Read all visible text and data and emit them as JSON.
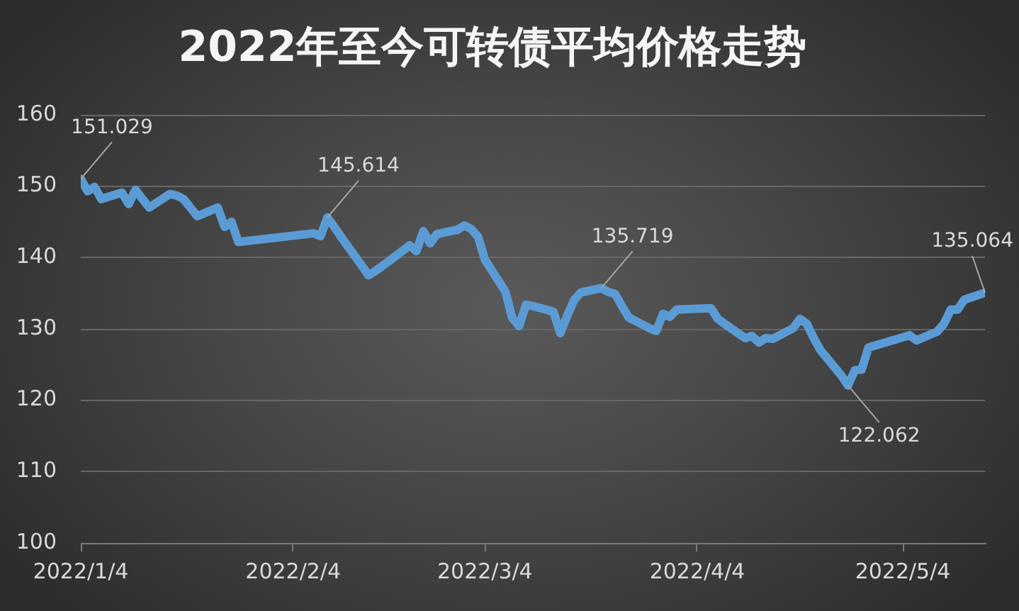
{
  "chart_data": {
    "type": "line",
    "title": "2022年至今可转债平均价格走势",
    "x": [
      "2022-01-04",
      "2022-01-05",
      "2022-01-06",
      "2022-01-07",
      "2022-01-10",
      "2022-01-11",
      "2022-01-12",
      "2022-01-13",
      "2022-01-14",
      "2022-01-17",
      "2022-01-18",
      "2022-01-19",
      "2022-01-20",
      "2022-01-21",
      "2022-01-24",
      "2022-01-25",
      "2022-01-26",
      "2022-01-27",
      "2022-01-28",
      "2022-02-07",
      "2022-02-08",
      "2022-02-09",
      "2022-02-10",
      "2022-02-11",
      "2022-02-14",
      "2022-02-15",
      "2022-02-16",
      "2022-02-17",
      "2022-02-18",
      "2022-02-21",
      "2022-02-22",
      "2022-02-23",
      "2022-02-24",
      "2022-02-25",
      "2022-02-28",
      "2022-03-01",
      "2022-03-02",
      "2022-03-03",
      "2022-03-04",
      "2022-03-07",
      "2022-03-08",
      "2022-03-09",
      "2022-03-10",
      "2022-03-11",
      "2022-03-14",
      "2022-03-15",
      "2022-03-16",
      "2022-03-17",
      "2022-03-18",
      "2022-03-21",
      "2022-03-22",
      "2022-03-23",
      "2022-03-24",
      "2022-03-25",
      "2022-03-28",
      "2022-03-29",
      "2022-03-30",
      "2022-03-31",
      "2022-04-01",
      "2022-04-06",
      "2022-04-07",
      "2022-04-08",
      "2022-04-11",
      "2022-04-12",
      "2022-04-13",
      "2022-04-14",
      "2022-04-15",
      "2022-04-18",
      "2022-04-19",
      "2022-04-20",
      "2022-04-21",
      "2022-04-22",
      "2022-04-25",
      "2022-04-26",
      "2022-04-27",
      "2022-04-28",
      "2022-04-29",
      "2022-05-05",
      "2022-05-06",
      "2022-05-09",
      "2022-05-10",
      "2022-05-11",
      "2022-05-12",
      "2022-05-13",
      "2022-05-16"
    ],
    "values": [
      151.029,
      149.3,
      149.9,
      148.2,
      149.1,
      147.5,
      149.5,
      148.2,
      147.0,
      148.9,
      148.7,
      148.2,
      147.0,
      145.8,
      147.0,
      144.3,
      145.0,
      142.2,
      142.3,
      143.4,
      143.0,
      145.614,
      144.3,
      142.9,
      138.9,
      137.5,
      138.1,
      138.8,
      139.5,
      141.7,
      140.9,
      143.7,
      142.0,
      143.3,
      143.9,
      144.5,
      144.0,
      142.9,
      139.7,
      135.2,
      131.5,
      130.4,
      133.4,
      133.2,
      132.4,
      129.4,
      131.8,
      134.0,
      135.1,
      135.719,
      135.2,
      134.9,
      133.2,
      131.6,
      130.1,
      129.7,
      132.1,
      131.7,
      132.7,
      132.9,
      131.4,
      130.7,
      128.7,
      129.0,
      128.1,
      128.7,
      128.6,
      130.1,
      131.4,
      130.7,
      128.7,
      127.0,
      123.5,
      122.062,
      124.2,
      124.3,
      127.4,
      129.1,
      128.4,
      129.6,
      130.7,
      132.7,
      132.7,
      134.1,
      135.064
    ],
    "color": "#5b9bd5",
    "marker": "none",
    "line_style": "solid",
    "xlim": [
      "2022-01-04",
      "2022-05-16"
    ],
    "xticks": [
      {
        "value": "2022-01-04",
        "label": "2022/1/4"
      },
      {
        "value": "2022-02-04",
        "label": "2022/2/4"
      },
      {
        "value": "2022-03-04",
        "label": "2022/3/4"
      },
      {
        "value": "2022-04-04",
        "label": "2022/4/4"
      },
      {
        "value": "2022-05-04",
        "label": "2022/5/4"
      }
    ],
    "ylim": [
      100,
      160
    ],
    "yticks": [
      100,
      110,
      120,
      130,
      140,
      150,
      160
    ],
    "grid": "y",
    "annotations": [
      {
        "text": "151.029",
        "x": "2022-01-04",
        "y": 151.029
      },
      {
        "text": "145.614",
        "x": "2022-02-09",
        "y": 145.614
      },
      {
        "text": "135.719",
        "x": "2022-03-21",
        "y": 135.719
      },
      {
        "text": "122.062",
        "x": "2022-04-26",
        "y": 122.062
      },
      {
        "text": "135.064",
        "x": "2022-05-16",
        "y": 135.064
      }
    ]
  }
}
